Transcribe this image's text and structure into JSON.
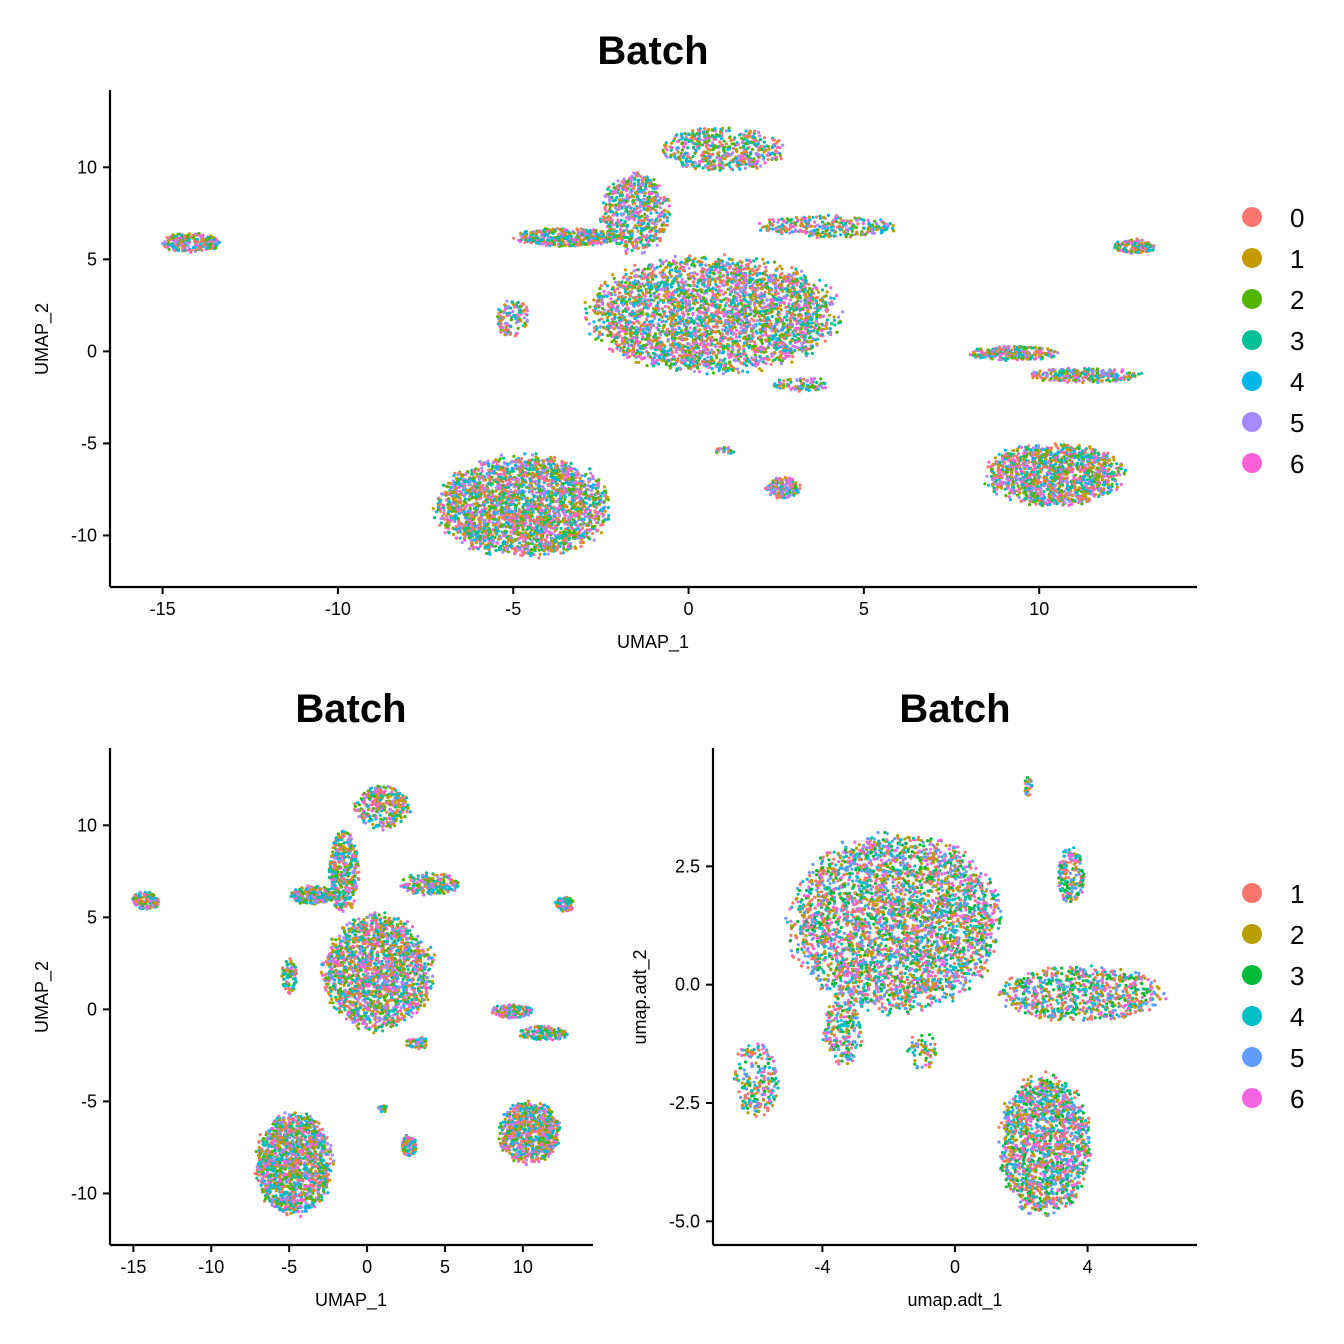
{
  "chart_data": [
    {
      "id": "top",
      "type": "scatter",
      "title": "Batch",
      "xlabel": "UMAP_1",
      "ylabel": "UMAP_2",
      "xlim": [
        -16.5,
        14.5
      ],
      "ylim": [
        -12.8,
        14.2
      ],
      "xticks": [
        -15,
        -10,
        -5,
        0,
        5,
        10
      ],
      "xtick_labels": [
        "-15",
        "-10",
        "-5",
        "0",
        "5",
        "10"
      ],
      "yticks": [
        -10,
        -5,
        0,
        5,
        10
      ],
      "ytick_labels": [
        "-10",
        "-5",
        "0",
        "5",
        "10"
      ],
      "grid": false,
      "legend": {
        "position": "right",
        "entries": [
          {
            "label": "0",
            "color": "#F8766D"
          },
          {
            "label": "1",
            "color": "#C49A00"
          },
          {
            "label": "2",
            "color": "#53B400"
          },
          {
            "label": "3",
            "color": "#00C094"
          },
          {
            "label": "4",
            "color": "#00B6EB"
          },
          {
            "label": "5",
            "color": "#A58AFF"
          },
          {
            "label": "6",
            "color": "#FB61D7"
          }
        ]
      },
      "series": [
        {
          "name": "0",
          "color": "#F8766D"
        },
        {
          "name": "1",
          "color": "#C49A00"
        },
        {
          "name": "2",
          "color": "#53B400"
        },
        {
          "name": "3",
          "color": "#00C094"
        },
        {
          "name": "4",
          "color": "#00B6EB"
        },
        {
          "name": "5",
          "color": "#A58AFF"
        },
        {
          "name": "6",
          "color": "#FB61D7"
        }
      ],
      "clusters": [
        {
          "cx": 0.7,
          "cy": 2.0,
          "rx": 3.6,
          "ry": 3.2,
          "n": 3200
        },
        {
          "cx": -1.5,
          "cy": 7.5,
          "rx": 1.0,
          "ry": 2.2,
          "n": 600
        },
        {
          "cx": 1.0,
          "cy": 11.0,
          "rx": 1.8,
          "ry": 1.2,
          "n": 500
        },
        {
          "cx": -3.5,
          "cy": 6.2,
          "rx": 1.5,
          "ry": 0.5,
          "n": 400
        },
        {
          "cx": 4.0,
          "cy": 6.8,
          "rx": 2.0,
          "ry": 0.6,
          "n": 300
        },
        {
          "cx": -14.2,
          "cy": 5.9,
          "rx": 0.9,
          "ry": 0.5,
          "n": 250
        },
        {
          "cx": 12.7,
          "cy": 5.7,
          "rx": 0.6,
          "ry": 0.4,
          "n": 150
        },
        {
          "cx": -5.0,
          "cy": 1.8,
          "rx": 0.5,
          "ry": 1.0,
          "n": 120
        },
        {
          "cx": -4.7,
          "cy": -8.4,
          "rx": 2.5,
          "ry": 2.8,
          "n": 2600
        },
        {
          "cx": 10.4,
          "cy": -6.7,
          "rx": 2.0,
          "ry": 1.7,
          "n": 1300
        },
        {
          "cx": 9.3,
          "cy": -0.1,
          "rx": 1.3,
          "ry": 0.4,
          "n": 260
        },
        {
          "cx": 11.3,
          "cy": -1.3,
          "rx": 1.6,
          "ry": 0.4,
          "n": 260
        },
        {
          "cx": 2.7,
          "cy": -7.4,
          "rx": 0.5,
          "ry": 0.6,
          "n": 160
        },
        {
          "cx": 3.2,
          "cy": -1.8,
          "rx": 0.8,
          "ry": 0.4,
          "n": 80
        },
        {
          "cx": 1.0,
          "cy": -5.4,
          "rx": 0.3,
          "ry": 0.2,
          "n": 25
        }
      ]
    },
    {
      "id": "bottom-left",
      "type": "scatter",
      "title": "Batch",
      "xlabel": "UMAP_1",
      "ylabel": "UMAP_2",
      "xlim": [
        -16.5,
        14.5
      ],
      "ylim": [
        -12.8,
        14.2
      ],
      "xticks": [
        -15,
        -10,
        -5,
        0,
        5,
        10
      ],
      "xtick_labels": [
        "-15",
        "-10",
        "-5",
        "0",
        "5",
        "10"
      ],
      "yticks": [
        -10,
        -5,
        0,
        5,
        10
      ],
      "ytick_labels": [
        "-10",
        "-5",
        "0",
        "5",
        "10"
      ],
      "grid": false,
      "series": [
        {
          "name": "0",
          "color": "#F8766D"
        },
        {
          "name": "1",
          "color": "#C49A00"
        },
        {
          "name": "2",
          "color": "#53B400"
        },
        {
          "name": "3",
          "color": "#00C094"
        },
        {
          "name": "4",
          "color": "#00B6EB"
        },
        {
          "name": "5",
          "color": "#A58AFF"
        },
        {
          "name": "6",
          "color": "#FB61D7"
        }
      ],
      "clusters": [
        {
          "cx": 0.7,
          "cy": 2.0,
          "rx": 3.6,
          "ry": 3.2,
          "n": 1800
        },
        {
          "cx": -1.5,
          "cy": 7.5,
          "rx": 1.0,
          "ry": 2.2,
          "n": 400
        },
        {
          "cx": 1.0,
          "cy": 11.0,
          "rx": 1.8,
          "ry": 1.2,
          "n": 300
        },
        {
          "cx": -3.5,
          "cy": 6.2,
          "rx": 1.5,
          "ry": 0.5,
          "n": 250
        },
        {
          "cx": 4.0,
          "cy": 6.8,
          "rx": 2.0,
          "ry": 0.6,
          "n": 200
        },
        {
          "cx": -14.2,
          "cy": 5.9,
          "rx": 0.9,
          "ry": 0.5,
          "n": 150
        },
        {
          "cx": 12.7,
          "cy": 5.7,
          "rx": 0.6,
          "ry": 0.4,
          "n": 100
        },
        {
          "cx": -5.0,
          "cy": 1.8,
          "rx": 0.5,
          "ry": 1.0,
          "n": 80
        },
        {
          "cx": -4.7,
          "cy": -8.4,
          "rx": 2.5,
          "ry": 2.8,
          "n": 1500
        },
        {
          "cx": 10.4,
          "cy": -6.7,
          "rx": 2.0,
          "ry": 1.7,
          "n": 800
        },
        {
          "cx": 9.3,
          "cy": -0.1,
          "rx": 1.3,
          "ry": 0.4,
          "n": 150
        },
        {
          "cx": 11.3,
          "cy": -1.3,
          "rx": 1.6,
          "ry": 0.4,
          "n": 150
        },
        {
          "cx": 2.7,
          "cy": -7.4,
          "rx": 0.5,
          "ry": 0.6,
          "n": 100
        },
        {
          "cx": 3.2,
          "cy": -1.8,
          "rx": 0.8,
          "ry": 0.4,
          "n": 50
        },
        {
          "cx": 1.0,
          "cy": -5.4,
          "rx": 0.3,
          "ry": 0.2,
          "n": 20
        }
      ]
    },
    {
      "id": "bottom-right",
      "type": "scatter",
      "title": "Batch",
      "xlabel": "umap.adt_1",
      "ylabel": "umap.adt_2",
      "xlim": [
        -7.3,
        7.3
      ],
      "ylim": [
        -5.5,
        5.0
      ],
      "xticks": [
        -4,
        0,
        4
      ],
      "xtick_labels": [
        "-4",
        "0",
        "4"
      ],
      "yticks": [
        -5,
        -2.5,
        0,
        2.5
      ],
      "ytick_labels": [
        "-5.0",
        "-2.5",
        "0.0",
        "2.5"
      ],
      "grid": false,
      "legend": {
        "position": "right",
        "entries": [
          {
            "label": "1",
            "color": "#F8766D"
          },
          {
            "label": "2",
            "color": "#B79F00"
          },
          {
            "label": "3",
            "color": "#00BA38"
          },
          {
            "label": "4",
            "color": "#00BFC4"
          },
          {
            "label": "5",
            "color": "#619CFF"
          },
          {
            "label": "6",
            "color": "#F564E3"
          }
        ]
      },
      "series": [
        {
          "name": "1",
          "color": "#F8766D"
        },
        {
          "name": "2",
          "color": "#B79F00"
        },
        {
          "name": "3",
          "color": "#00BA38"
        },
        {
          "name": "4",
          "color": "#00BFC4"
        },
        {
          "name": "5",
          "color": "#619CFF"
        },
        {
          "name": "6",
          "color": "#F564E3"
        }
      ],
      "clusters": [
        {
          "cx": -1.8,
          "cy": 1.3,
          "rx": 3.2,
          "ry": 1.9,
          "n": 3600
        },
        {
          "cx": 3.8,
          "cy": -0.2,
          "rx": 2.5,
          "ry": 0.6,
          "n": 800
        },
        {
          "cx": 2.7,
          "cy": -3.4,
          "rx": 1.4,
          "ry": 1.5,
          "n": 1600
        },
        {
          "cx": -6.0,
          "cy": -2.0,
          "rx": 0.7,
          "ry": 0.8,
          "n": 220
        },
        {
          "cx": -3.4,
          "cy": -1.0,
          "rx": 0.6,
          "ry": 0.7,
          "n": 220
        },
        {
          "cx": 3.5,
          "cy": 2.3,
          "rx": 0.4,
          "ry": 0.6,
          "n": 180
        },
        {
          "cx": 2.2,
          "cy": 4.2,
          "rx": 0.15,
          "ry": 0.2,
          "n": 25
        },
        {
          "cx": -1.0,
          "cy": -1.4,
          "rx": 0.5,
          "ry": 0.4,
          "n": 60
        }
      ]
    }
  ]
}
